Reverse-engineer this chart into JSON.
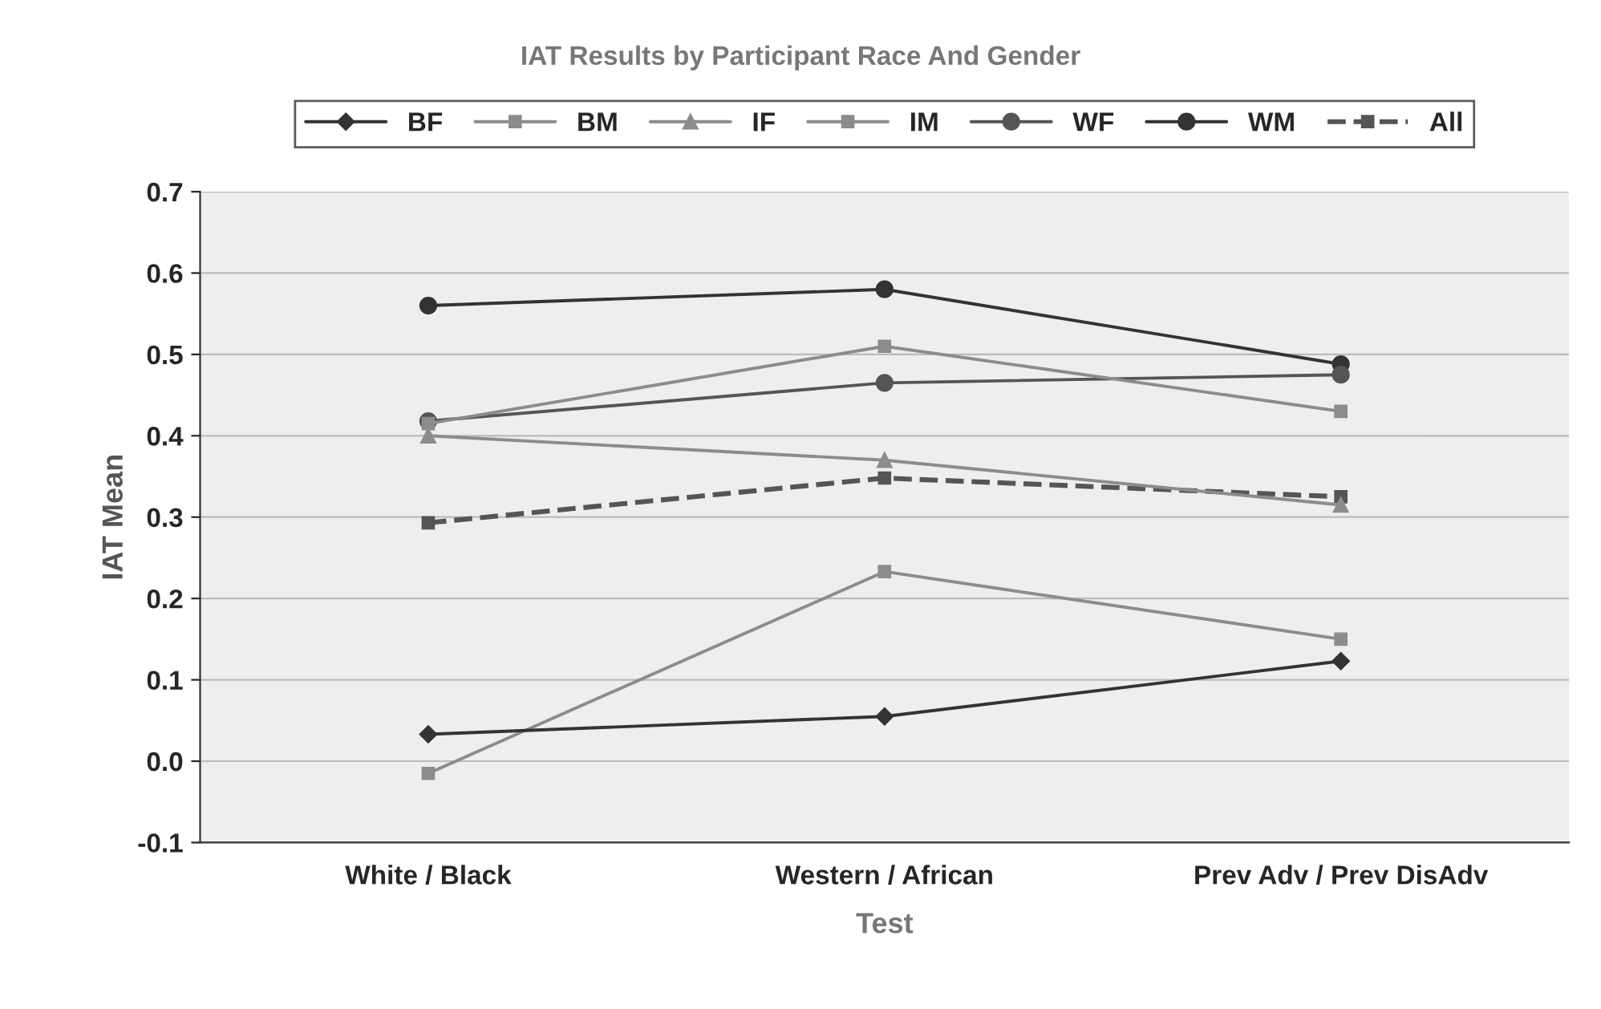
{
  "chart_data": {
    "type": "line",
    "title": "IAT Results by Participant Race And Gender",
    "xlabel": "Test",
    "ylabel": "IAT Mean",
    "categories": [
      "White / Black",
      "Western / African",
      "Prev Adv / Prev DisAdv"
    ],
    "series": [
      {
        "name": "BF",
        "color": "#333333",
        "marker": "diamond",
        "line_style": "solid",
        "values": [
          0.033,
          0.055,
          0.123
        ]
      },
      {
        "name": "BM",
        "color": "#8c8c8c",
        "marker": "square",
        "line_style": "solid",
        "values": [
          -0.015,
          0.233,
          0.15
        ]
      },
      {
        "name": "IF",
        "color": "#8c8c8c",
        "marker": "triangle",
        "line_style": "solid",
        "values": [
          0.4,
          0.37,
          0.315
        ]
      },
      {
        "name": "IM",
        "color": "#8c8c8c",
        "marker": "square",
        "line_style": "solid",
        "values": [
          0.415,
          0.51,
          0.43
        ]
      },
      {
        "name": "WF",
        "color": "#555555",
        "marker": "circle",
        "line_style": "solid",
        "values": [
          0.418,
          0.465,
          0.475
        ]
      },
      {
        "name": "WM",
        "color": "#333333",
        "marker": "circle",
        "line_style": "solid",
        "values": [
          0.56,
          0.58,
          0.488
        ]
      },
      {
        "name": "All",
        "color": "#555555",
        "marker": "square",
        "line_style": "dashed",
        "values": [
          0.293,
          0.348,
          0.325
        ]
      }
    ],
    "ylim": [
      -0.1,
      0.7
    ],
    "yticks": [
      {
        "value": -0.1,
        "label": "-0.1"
      },
      {
        "value": 0.0,
        "label": "0.0"
      },
      0.1,
      0.2,
      0.3,
      0.4,
      0.5,
      0.6,
      0.7
    ],
    "grid": "y",
    "legend": "top"
  }
}
